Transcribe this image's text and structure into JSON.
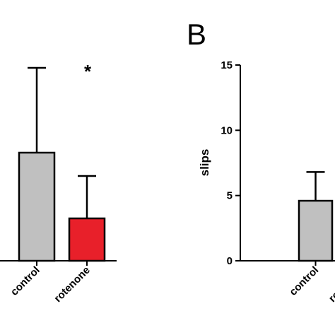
{
  "chart_data": [
    {
      "type": "bar",
      "panel": "",
      "categories": [
        "control",
        "rotenone"
      ],
      "values": [
        null,
        null
      ],
      "error_upper": [
        null,
        null
      ],
      "colors": [
        "#c0c0c0",
        "#e8202a"
      ],
      "annotations": [
        {
          "category": "rotenone",
          "text": "*"
        }
      ],
      "xlabel": "",
      "ylabel": "",
      "grid": false
    },
    {
      "type": "bar",
      "panel": "B",
      "categories": [
        "control",
        "rotenone"
      ],
      "values": [
        4.6,
        null
      ],
      "error_upper": [
        6.8,
        null
      ],
      "colors": [
        "#c0c0c0",
        "#e8202a"
      ],
      "ylabel": "slips",
      "xlabel": "",
      "ylim": [
        0,
        15
      ],
      "yticks": [
        "0",
        "5",
        "10",
        "15"
      ],
      "grid": false
    }
  ]
}
